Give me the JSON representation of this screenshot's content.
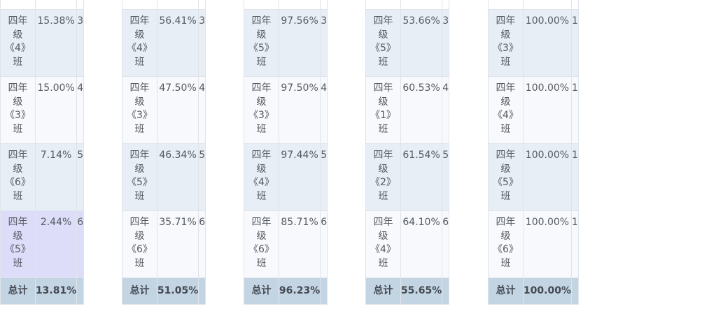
{
  "tables": [
    {
      "rows": [
        {
          "class": "四年级《4》班",
          "pct": "15.38%",
          "rank": "3"
        },
        {
          "class": "四年级《3》班",
          "pct": "15.00%",
          "rank": "4"
        },
        {
          "class": "四年级《6》班",
          "pct": "7.14%",
          "rank": "5"
        },
        {
          "class": "四年级《5》班",
          "pct": "2.44%",
          "rank": "6"
        }
      ],
      "total": {
        "label": "总计",
        "pct": "13.81%"
      }
    },
    {
      "rows": [
        {
          "class": "四年级《4》班",
          "pct": "56.41%",
          "rank": "3"
        },
        {
          "class": "四年级《3》班",
          "pct": "47.50%",
          "rank": "4"
        },
        {
          "class": "四年级《5》班",
          "pct": "46.34%",
          "rank": "5"
        },
        {
          "class": "四年级《6》班",
          "pct": "35.71%",
          "rank": "6"
        }
      ],
      "total": {
        "label": "总计",
        "pct": "51.05%"
      }
    },
    {
      "rows": [
        {
          "class": "四年级《5》班",
          "pct": "97.56%",
          "rank": "3"
        },
        {
          "class": "四年级《3》班",
          "pct": "97.50%",
          "rank": "4"
        },
        {
          "class": "四年级《4》班",
          "pct": "97.44%",
          "rank": "5"
        },
        {
          "class": "四年级《6》班",
          "pct": "85.71%",
          "rank": "6"
        }
      ],
      "total": {
        "label": "总计",
        "pct": "96.23%"
      }
    },
    {
      "rows": [
        {
          "class": "四年级《5》班",
          "pct": "53.66%",
          "rank": "3"
        },
        {
          "class": "四年级《1》班",
          "pct": "60.53%",
          "rank": "4"
        },
        {
          "class": "四年级《2》班",
          "pct": "61.54%",
          "rank": "5"
        },
        {
          "class": "四年级《4》班",
          "pct": "64.10%",
          "rank": "6"
        }
      ],
      "total": {
        "label": "总计",
        "pct": "55.65%"
      }
    },
    {
      "rows": [
        {
          "class": "四年级《3》班",
          "pct": "100.00%",
          "rank": "1"
        },
        {
          "class": "四年级《4》班",
          "pct": "100.00%",
          "rank": "1"
        },
        {
          "class": "四年级《5》班",
          "pct": "100.00%",
          "rank": "1"
        },
        {
          "class": "四年级《6》班",
          "pct": "100.00%",
          "rank": "1"
        }
      ],
      "total": {
        "label": "总计",
        "pct": "100.00%"
      }
    }
  ],
  "selected_row": {
    "table": 0,
    "row": 3
  }
}
